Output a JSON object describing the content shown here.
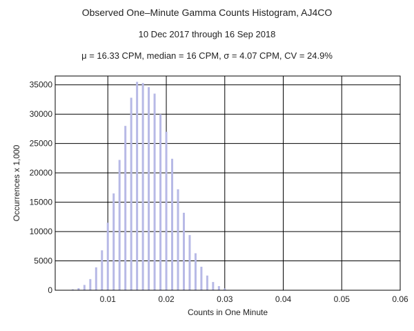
{
  "title": "Observed One–Minute Gamma Counts Histogram, AJ4CO",
  "subtitle": "10 Dec 2017 through 16 Sep 2018",
  "stats": "μ = 16.33 CPM,   median = 16 CPM,   σ = 4.07 CPM,   CV = 24.9%",
  "chart_data": {
    "type": "bar",
    "title": "Observed One–Minute Gamma Counts Histogram, AJ4CO",
    "subtitle": "10 Dec 2017 through 16 Sep 2018",
    "xlabel": "Counts in One Minute",
    "ylabel": "Occurrences x 1,000",
    "xlim": [
      0.001,
      0.06
    ],
    "ylim": [
      0,
      36500
    ],
    "xticks": [
      0.01,
      0.02,
      0.03,
      0.04,
      0.05,
      0.06
    ],
    "xtick_labels": [
      "0.01",
      "0.02",
      "0.03",
      "0.04",
      "0.05",
      "0.06"
    ],
    "yticks": [
      0,
      5000,
      10000,
      15000,
      20000,
      25000,
      30000,
      35000
    ],
    "ytick_labels": [
      "0",
      "5000",
      "10000",
      "15000",
      "20000",
      "25000",
      "30000",
      "35000"
    ],
    "grid": true,
    "bar_color": "#b7b9e6",
    "x": [
      0.004,
      0.005,
      0.006,
      0.007,
      0.008,
      0.009,
      0.01,
      0.011,
      0.012,
      0.013,
      0.014,
      0.015,
      0.016,
      0.017,
      0.018,
      0.019,
      0.02,
      0.021,
      0.022,
      0.023,
      0.024,
      0.025,
      0.026,
      0.027,
      0.028,
      0.029,
      0.03
    ],
    "values": [
      150,
      350,
      900,
      1900,
      3900,
      6800,
      11500,
      16500,
      22200,
      28000,
      32800,
      35500,
      35300,
      34600,
      33500,
      30000,
      27000,
      22400,
      17200,
      13200,
      9400,
      6300,
      4000,
      2500,
      1400,
      700,
      300
    ]
  }
}
